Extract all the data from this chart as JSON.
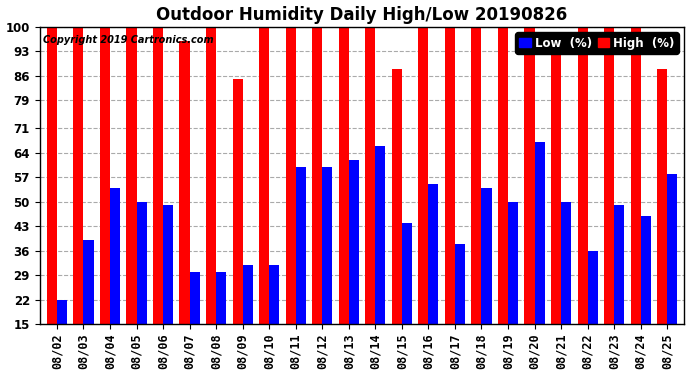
{
  "title": "Outdoor Humidity Daily High/Low 20190826",
  "copyright": "Copyright 2019 Cartronics.com",
  "dates": [
    "08/02",
    "08/03",
    "08/04",
    "08/05",
    "08/06",
    "08/07",
    "08/08",
    "08/09",
    "08/10",
    "08/11",
    "08/12",
    "08/13",
    "08/14",
    "08/15",
    "08/16",
    "08/17",
    "08/18",
    "08/19",
    "08/20",
    "08/21",
    "08/22",
    "08/23",
    "08/24",
    "08/25"
  ],
  "high": [
    100,
    100,
    100,
    100,
    100,
    96,
    100,
    85,
    100,
    100,
    100,
    100,
    100,
    88,
    100,
    100,
    100,
    100,
    100,
    96,
    100,
    100,
    100,
    88
  ],
  "low": [
    22,
    39,
    54,
    50,
    49,
    30,
    30,
    32,
    32,
    60,
    60,
    62,
    66,
    44,
    55,
    38,
    54,
    50,
    67,
    50,
    36,
    49,
    46,
    58
  ],
  "high_color": "#ff0000",
  "low_color": "#0000ff",
  "bg_color": "#ffffff",
  "grid_color": "#aaaaaa",
  "yticks": [
    15,
    22,
    29,
    36,
    43,
    50,
    57,
    64,
    71,
    79,
    86,
    93,
    100
  ],
  "ytick_labels": [
    "15",
    "22",
    "29",
    "36",
    "43",
    "50",
    "57",
    "64",
    "71",
    "79",
    "86",
    "93",
    "100"
  ],
  "ymin": 15,
  "ymax": 100,
  "bar_width": 0.38,
  "title_fontsize": 12,
  "tick_fontsize": 8.5,
  "legend_fontsize": 8.5,
  "figwidth": 6.9,
  "figheight": 3.75,
  "dpi": 100
}
